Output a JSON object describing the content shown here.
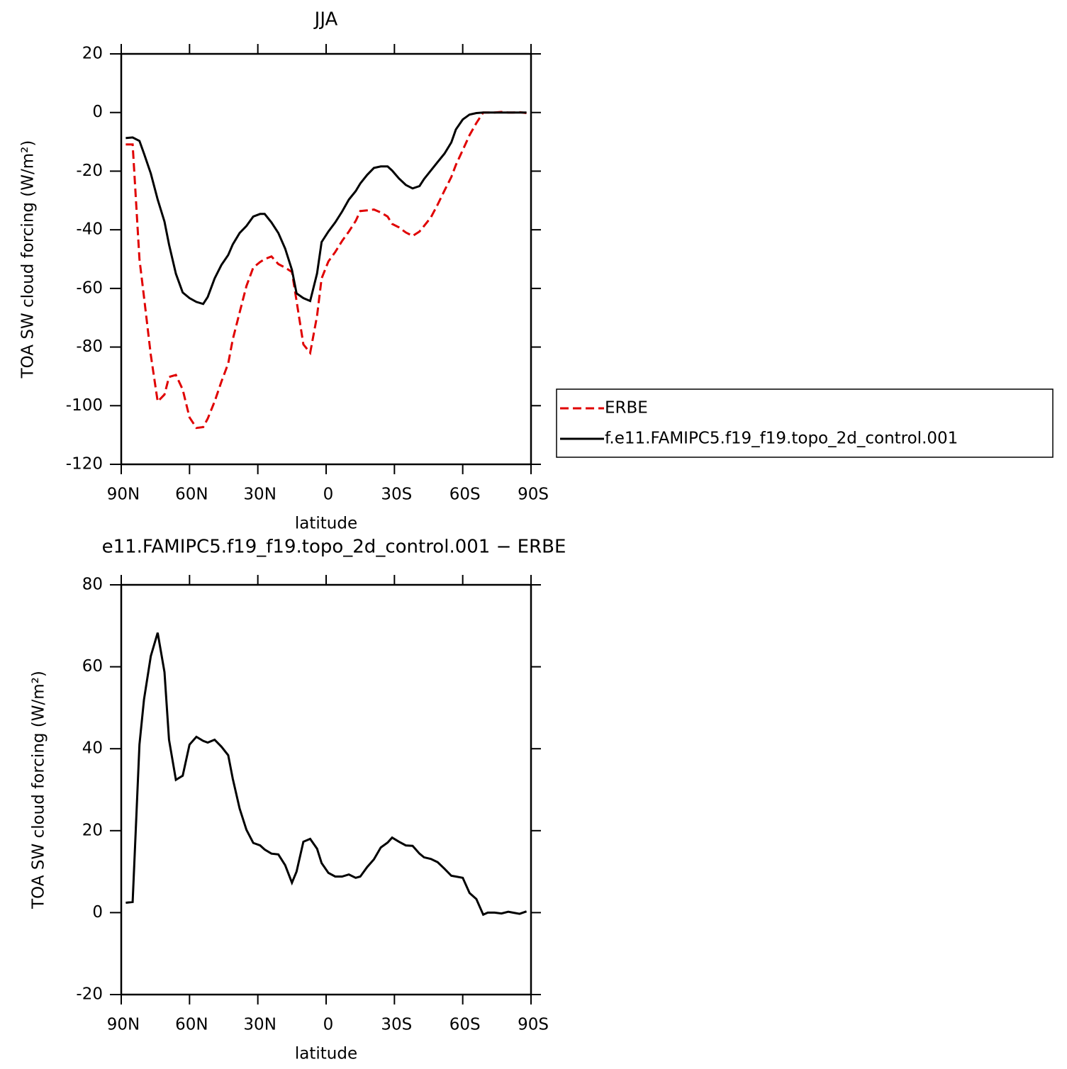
{
  "chart_data": [
    {
      "type": "line",
      "title": "JJA",
      "xlabel": "latitude",
      "ylabel": "TOA SW cloud forcing (W/m²)",
      "xlim": [
        90,
        -90
      ],
      "xticks": [
        {
          "value": 90,
          "label": "90N"
        },
        {
          "value": 60,
          "label": "60N"
        },
        {
          "value": 30,
          "label": "30N"
        },
        0,
        {
          "value": -30,
          "label": "30S"
        },
        {
          "value": -60,
          "label": "60S"
        },
        {
          "value": -90,
          "label": "90S"
        }
      ],
      "ylim": [
        -120,
        20
      ],
      "yticks": [
        20,
        0,
        -20,
        -40,
        -60,
        -80,
        -100,
        -120
      ],
      "legend": "right",
      "x": [
        88,
        85,
        82,
        80,
        77,
        74,
        71,
        69,
        66,
        63,
        60,
        57,
        54,
        52,
        49,
        46,
        43,
        41,
        38,
        35,
        32,
        29,
        27,
        24,
        21,
        18,
        15,
        13,
        10,
        7,
        4,
        2,
        -1,
        -4,
        -7,
        -10,
        -13,
        -15,
        -18,
        -21,
        -24,
        -27,
        -29,
        -32,
        -35,
        -38,
        -41,
        -43,
        -46,
        -49,
        -52,
        -55,
        -57,
        -60,
        -63,
        -66,
        -69,
        -71,
        -74,
        -77,
        -80,
        -82,
        -85,
        -88
      ],
      "series": [
        {
          "name": "ERBE",
          "color": "#e00000",
          "style": "dashed",
          "values": [
            -10.9,
            -10.9,
            -50,
            -62.9,
            -82.7,
            -98.6,
            -96.2,
            -90.2,
            -89.5,
            -94.5,
            -104,
            -107.6,
            -107.3,
            -104.4,
            -98.6,
            -91.8,
            -85.6,
            -77.4,
            -68.2,
            -59.2,
            -52.9,
            -51,
            -50,
            -49.1,
            -51.7,
            -52.9,
            -54.4,
            -64.3,
            -79.1,
            -82,
            -69.4,
            -56.6,
            -50.8,
            -47.6,
            -43.8,
            -40.6,
            -37,
            -33.6,
            -33.4,
            -33.1,
            -34.1,
            -35.5,
            -38,
            -39.2,
            -40.9,
            -42.1,
            -40.6,
            -38.7,
            -35.8,
            -31.4,
            -26.6,
            -22,
            -17.9,
            -12.8,
            -7.7,
            -3.6,
            0,
            0,
            0,
            0.2,
            0,
            0,
            0.1,
            -0.2
          ]
        },
        {
          "name": "f.e11.FAMIPC5.f19_f19.topo_2d_control.001",
          "color": "#000000",
          "style": "solid",
          "values": [
            -8.7,
            -8.5,
            -9.7,
            -14,
            -20.8,
            -29.7,
            -37.2,
            -45,
            -55,
            -61.4,
            -63.3,
            -64.6,
            -65.3,
            -62.9,
            -56.6,
            -52,
            -48.6,
            -45,
            -41.1,
            -38.7,
            -35.5,
            -34.6,
            -34.6,
            -37.5,
            -41.1,
            -46.4,
            -53.7,
            -61.7,
            -63.3,
            -64.3,
            -54.9,
            -44.2,
            -40.6,
            -37.5,
            -33.8,
            -29.7,
            -26.8,
            -24.2,
            -21.3,
            -18.9,
            -18.4,
            -18.4,
            -19.8,
            -22.5,
            -24.7,
            -25.9,
            -25.1,
            -22.7,
            -19.8,
            -16.9,
            -14,
            -10.2,
            -5.8,
            -2.4,
            -0.7,
            -0.2,
            0,
            0,
            0,
            0,
            0,
            0,
            0,
            0
          ]
        }
      ]
    },
    {
      "type": "line",
      "title": "e11.FAMIPC5.f19_f19.topo_2d_control.001 − ERBE",
      "xlabel": "latitude",
      "ylabel": "TOA SW cloud forcing (W/m²)",
      "xlim": [
        90,
        -90
      ],
      "xticks": [
        {
          "value": 90,
          "label": "90N"
        },
        {
          "value": 60,
          "label": "60N"
        },
        {
          "value": 30,
          "label": "30N"
        },
        0,
        {
          "value": -30,
          "label": "30S"
        },
        {
          "value": -60,
          "label": "60S"
        },
        {
          "value": -90,
          "label": "90S"
        }
      ],
      "ylim": [
        -20,
        80
      ],
      "yticks": [
        80,
        60,
        40,
        20,
        0,
        -20
      ],
      "x": [
        88,
        85,
        82,
        80,
        77,
        74,
        71,
        69,
        66,
        63,
        60,
        57,
        54,
        52,
        49,
        46,
        43,
        41,
        38,
        35,
        32,
        29,
        27,
        24,
        21,
        18,
        15,
        13,
        10,
        7,
        4,
        2,
        -1,
        -4,
        -7,
        -10,
        -13,
        -15,
        -18,
        -21,
        -24,
        -27,
        -29,
        -32,
        -35,
        -38,
        -41,
        -43,
        -46,
        -49,
        -52,
        -55,
        -57,
        -60,
        -63,
        -66,
        -69,
        -71,
        -74,
        -77,
        -80,
        -82,
        -85,
        -88
      ],
      "series": [
        {
          "color": "#000000",
          "style": "solid",
          "values": [
            2.4,
            2.6,
            41,
            52,
            62.6,
            68.3,
            58.7,
            42.2,
            32.4,
            33.4,
            41,
            42.9,
            41.9,
            41.5,
            42.2,
            40.5,
            38.4,
            32.7,
            25.4,
            20.2,
            17,
            16.4,
            15.4,
            14.4,
            14.2,
            11.6,
            7.3,
            10,
            17.3,
            18,
            15.6,
            12.1,
            9.7,
            8.8,
            8.8,
            9.3,
            8.5,
            8.8,
            11.1,
            13,
            15.9,
            17.1,
            18.3,
            17.3,
            16.4,
            16.3,
            14.4,
            13.5,
            13.1,
            12.3,
            10.7,
            9,
            8.8,
            8.5,
            4.8,
            3.3,
            -0.5,
            0,
            0,
            -0.2,
            0.2,
            0,
            -0.3,
            0.3
          ]
        }
      ]
    }
  ]
}
